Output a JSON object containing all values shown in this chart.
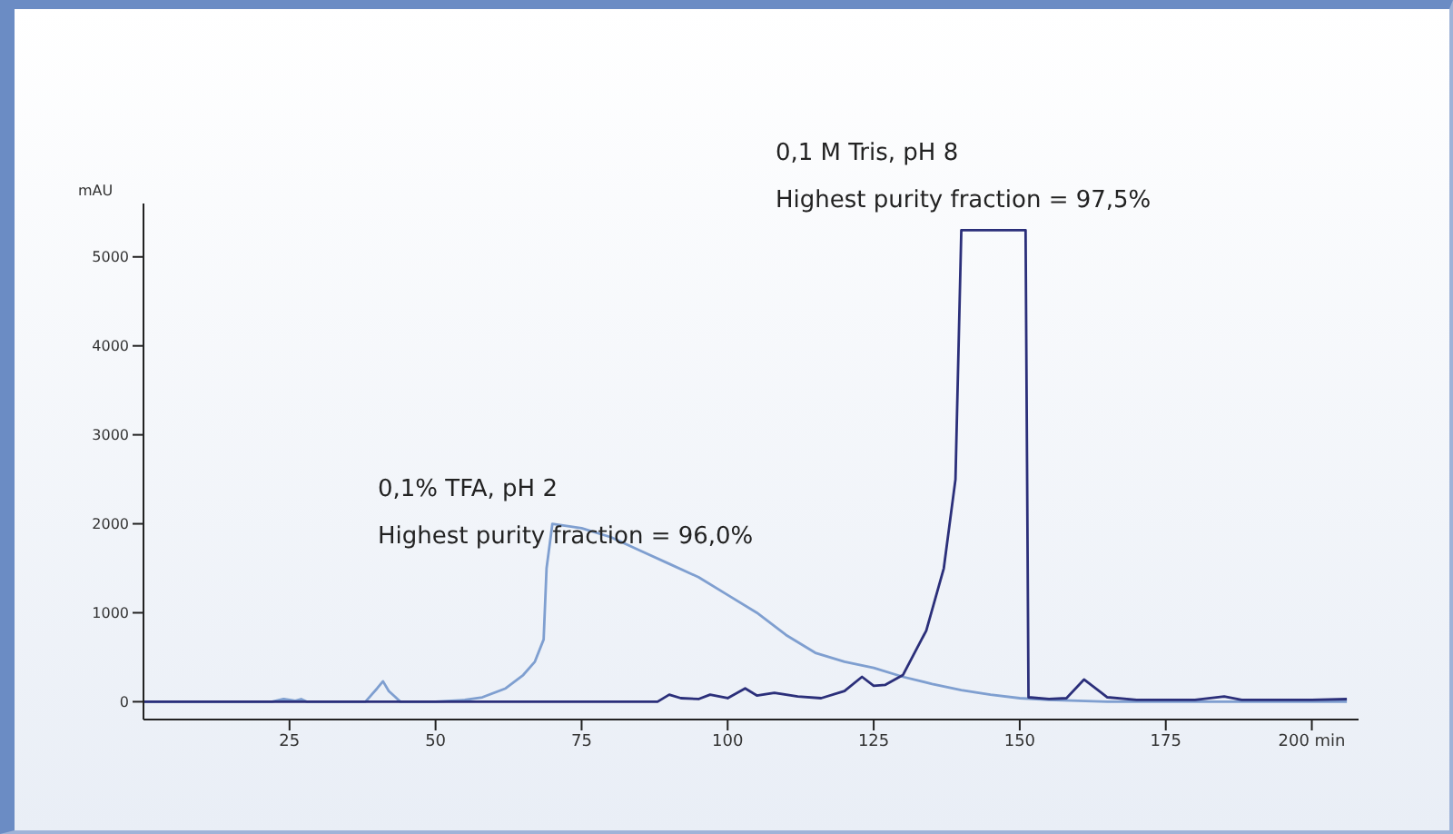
{
  "chart_data": {
    "type": "line",
    "ylabel": "mAU",
    "xlim": [
      0,
      208
    ],
    "xticks": [
      25,
      50,
      75,
      100,
      125,
      150,
      175,
      {
        "value": 200,
        "label": "200 min"
      }
    ],
    "ylim": [
      -200,
      5600
    ],
    "yticks": [
      0,
      1000,
      2000,
      3000,
      4000,
      5000
    ],
    "marker": "none",
    "line_style": "solid",
    "series": [
      {
        "name": "0,1% TFA, pH 2",
        "color": "#7f9fd0",
        "x": [
          0,
          22,
          24,
          26,
          27,
          28,
          38,
          40,
          41,
          42,
          44,
          50,
          55,
          58,
          62,
          65,
          67,
          68.5,
          69,
          70,
          75,
          80,
          85,
          90,
          95,
          100,
          105,
          110,
          115,
          120,
          125,
          130,
          135,
          140,
          145,
          150,
          155,
          160,
          165,
          170,
          180,
          190,
          200,
          206
        ],
        "values": [
          0,
          0,
          30,
          10,
          30,
          0,
          0,
          150,
          230,
          120,
          0,
          0,
          20,
          50,
          150,
          300,
          450,
          700,
          1500,
          2000,
          1950,
          1850,
          1700,
          1550,
          1400,
          1200,
          1000,
          750,
          550,
          450,
          380,
          280,
          200,
          130,
          80,
          40,
          20,
          10,
          0,
          0,
          0,
          0,
          0,
          0
        ]
      },
      {
        "name": "0,1 M Tris, pH 8",
        "color": "#2b2f7a",
        "x": [
          0,
          88,
          90,
          92,
          95,
          97,
          100,
          103,
          105,
          108,
          112,
          116,
          120,
          123,
          125,
          127,
          130,
          134,
          137,
          139,
          140,
          151,
          151.5,
          155,
          158,
          161,
          165,
          170,
          180,
          185,
          188,
          200,
          206
        ],
        "values": [
          0,
          0,
          80,
          40,
          30,
          80,
          40,
          150,
          70,
          100,
          60,
          40,
          120,
          280,
          180,
          190,
          300,
          800,
          1500,
          2500,
          5300,
          5300,
          50,
          30,
          40,
          250,
          50,
          20,
          20,
          60,
          20,
          20,
          30
        ]
      }
    ],
    "annotations": [
      "Highest purity fraction = 96,0%",
      "Highest purity fraction = 97,5%"
    ]
  }
}
